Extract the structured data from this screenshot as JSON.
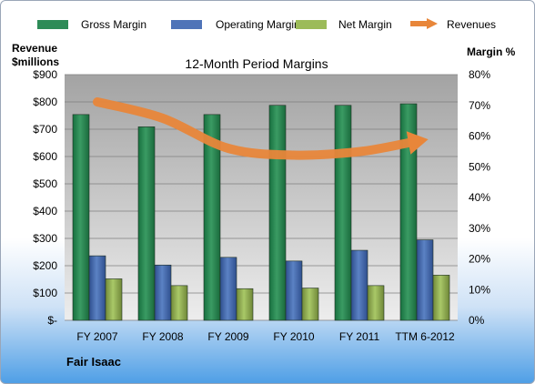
{
  "company": "Fair Isaac",
  "chart_data": {
    "type": "bar",
    "title": "12-Month Period Margins",
    "left_axis_label_line1": "Revenue",
    "left_axis_label_line2": "$millions",
    "right_axis_label": "Margin %",
    "categories": [
      "FY 2007",
      "FY 2008",
      "FY 2009",
      "FY 2010",
      "FY 2011",
      "TTM 6-2012"
    ],
    "left_ticks": [
      "$-",
      "$100",
      "$200",
      "$300",
      "$400",
      "$500",
      "$600",
      "$700",
      "$800",
      "$900"
    ],
    "right_ticks": [
      "0%",
      "10%",
      "20%",
      "30%",
      "40%",
      "50%",
      "60%",
      "70%",
      "80%"
    ],
    "ylim_left": [
      0,
      900
    ],
    "ylim_right": [
      0,
      80
    ],
    "grid": true,
    "legend_position": "top",
    "series": [
      {
        "name": "Gross Margin",
        "type": "bar",
        "axis": "right",
        "color": "#2e8b57",
        "values": [
          67,
          63,
          67,
          70,
          70,
          70.5
        ]
      },
      {
        "name": "Operating Margin",
        "type": "bar",
        "axis": "right",
        "color": "#4f74b8",
        "values": [
          21,
          18,
          20.5,
          19.3,
          22.8,
          26.2
        ]
      },
      {
        "name": "Net Margin",
        "type": "bar",
        "axis": "right",
        "color": "#9cbb59",
        "values": [
          13.5,
          11.3,
          10.3,
          10.5,
          11.3,
          14.7
        ]
      },
      {
        "name": "Revenues",
        "type": "line",
        "axis": "left",
        "color": "#e8863a",
        "values": [
          800,
          740,
          630,
          605,
          618,
          650
        ]
      }
    ]
  }
}
